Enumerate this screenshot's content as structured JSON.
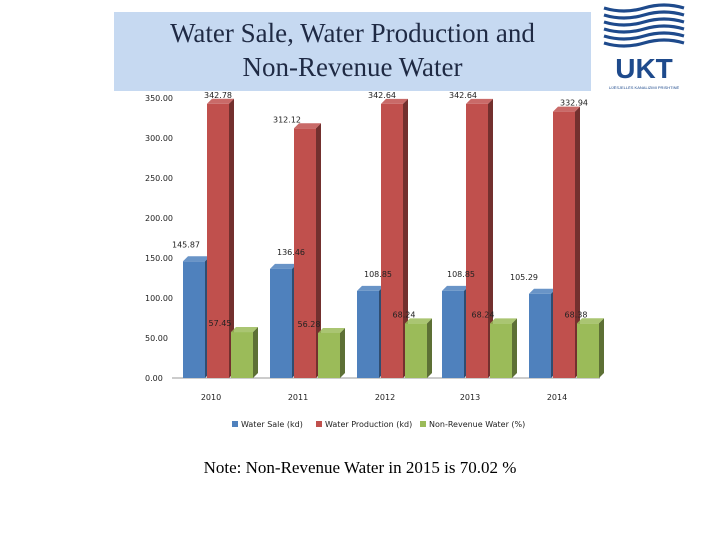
{
  "header": {
    "title_line1": "Water Sale, Water Production and",
    "title_line2": "Non-Revenue Water"
  },
  "logo": {
    "text": "UKT",
    "subtext": "UJËSJELLËS KANALIZIMI PRISHTINË"
  },
  "note": "Note: Non-Revenue Water in 2015  is 70.02 %",
  "colors": {
    "sale": "#4f81bd",
    "production": "#c0504d",
    "nrw": "#9bbb59",
    "title_bg": "#c6d9f1",
    "logo": "#1e4a8c"
  },
  "chart_data": {
    "type": "bar",
    "title": "Water Sale, Water Production and Non-Revenue Water",
    "categories": [
      "2010",
      "2011",
      "2012",
      "2013",
      "2014"
    ],
    "series": [
      {
        "name": "Water Sale (kd)",
        "values": [
          145.87,
          136.46,
          108.85,
          108.85,
          105.29
        ],
        "labels": [
          "145.87",
          "136.46",
          "108.85",
          "108.85",
          "105.29"
        ]
      },
      {
        "name": "Water Production (kd)",
        "values": [
          342.78,
          312.12,
          342.64,
          342.64,
          332.94
        ],
        "labels": [
          "342.78",
          "312.12",
          "342.64",
          "342.64",
          "332.94"
        ]
      },
      {
        "name": "Non-Revenue Water (%)",
        "values": [
          57.45,
          56.28,
          68.24,
          68.24,
          68.38
        ],
        "labels": [
          "57.45",
          "56.28",
          "68.24",
          "68.24",
          "68.38"
        ]
      }
    ],
    "y_ticks": [
      "0.00",
      "50.00",
      "100.00",
      "150.00",
      "200.00",
      "250.00",
      "300.00",
      "350.00"
    ],
    "ylim": [
      0,
      350
    ],
    "legend": "bottom",
    "grid": false
  }
}
